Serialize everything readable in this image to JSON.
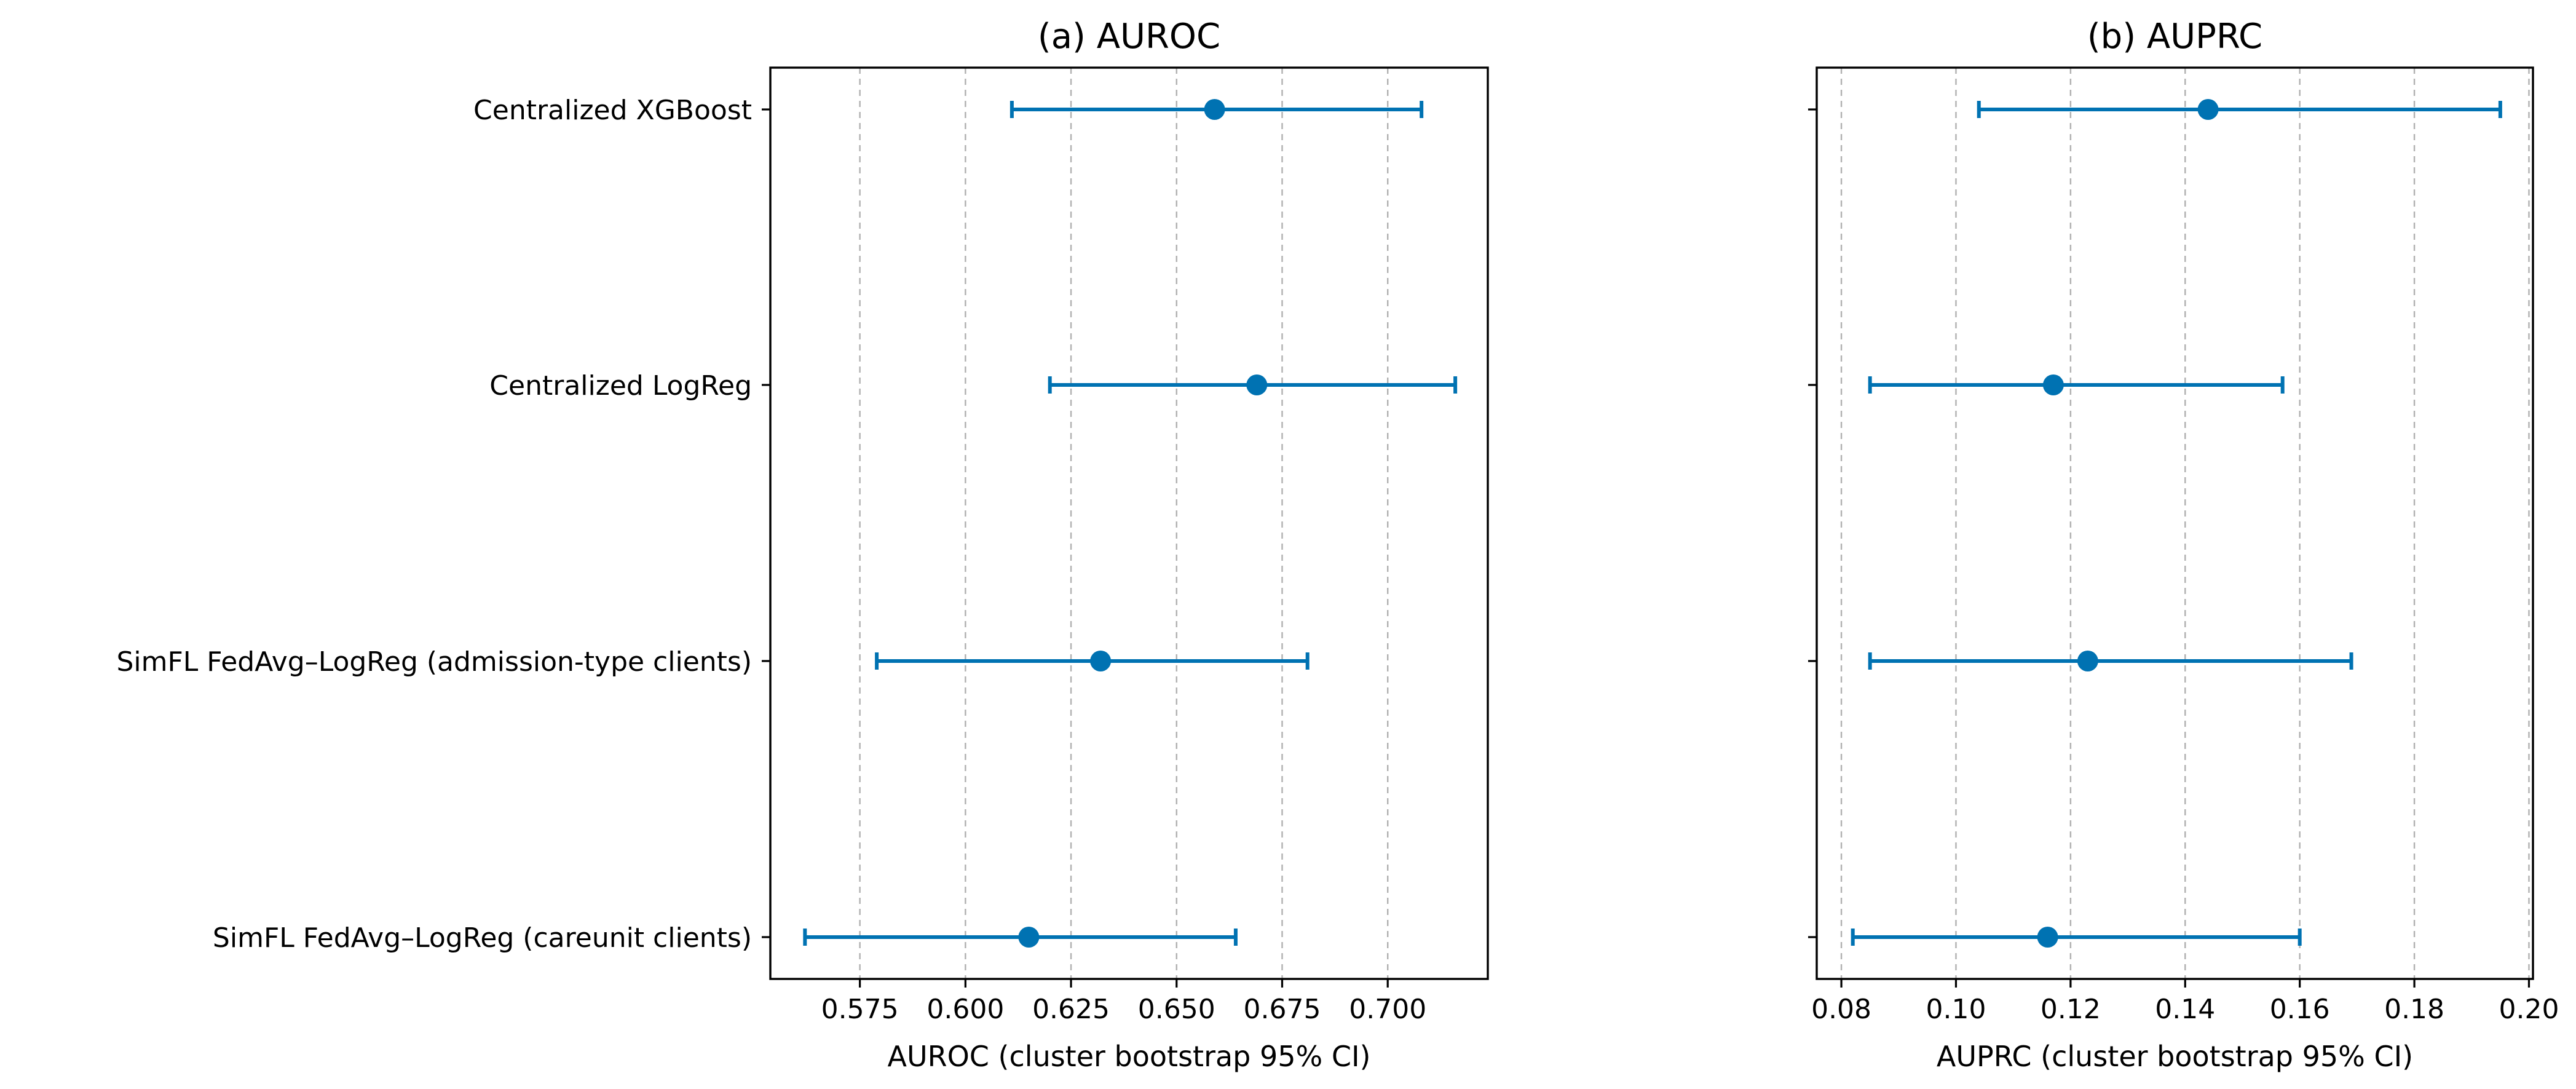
{
  "chart_data": [
    {
      "type": "errorbar",
      "title": "(a) AUROC",
      "xlabel": "AUROC (cluster bootstrap 95% CI)",
      "ylabel": "",
      "grid": "x-dashed",
      "xlim": [
        0.5538,
        0.7237
      ],
      "xticks": [
        0.575,
        0.6,
        0.625,
        0.65,
        0.675,
        0.7
      ],
      "xtick_labels": [
        "0.575",
        "0.600",
        "0.625",
        "0.650",
        "0.675",
        "0.700"
      ],
      "categories": [
        "Centralized XGBoost",
        "Centralized LogReg",
        "SimFL FedAvg–LogReg (admission-type clients)",
        "SimFL FedAvg–LogReg (careunit clients)"
      ],
      "series": [
        {
          "color": "#0072b2",
          "points": [
            {
              "estimate": 0.659,
              "lower": 0.611,
              "upper": 0.708
            },
            {
              "estimate": 0.669,
              "lower": 0.62,
              "upper": 0.716
            },
            {
              "estimate": 0.632,
              "lower": 0.579,
              "upper": 0.681
            },
            {
              "estimate": 0.615,
              "lower": 0.562,
              "upper": 0.664
            }
          ]
        }
      ]
    },
    {
      "type": "errorbar",
      "title": "(b) AUPRC",
      "xlabel": "AUPRC (cluster bootstrap 95% CI)",
      "ylabel": "",
      "grid": "x-dashed",
      "xlim": [
        0.0757,
        0.2007
      ],
      "xticks": [
        0.08,
        0.1,
        0.12,
        0.14,
        0.16,
        0.18,
        0.2
      ],
      "xtick_labels": [
        "0.08",
        "0.10",
        "0.12",
        "0.14",
        "0.16",
        "0.18",
        "0.20"
      ],
      "categories": [
        "Centralized XGBoost",
        "Centralized LogReg",
        "SimFL FedAvg–LogReg (admission-type clients)",
        "SimFL FedAvg–LogReg (careunit clients)"
      ],
      "series": [
        {
          "color": "#0072b2",
          "points": [
            {
              "estimate": 0.144,
              "lower": 0.104,
              "upper": 0.195
            },
            {
              "estimate": 0.117,
              "lower": 0.085,
              "upper": 0.157
            },
            {
              "estimate": 0.123,
              "lower": 0.085,
              "upper": 0.169
            },
            {
              "estimate": 0.116,
              "lower": 0.082,
              "upper": 0.16
            }
          ]
        }
      ]
    }
  ]
}
